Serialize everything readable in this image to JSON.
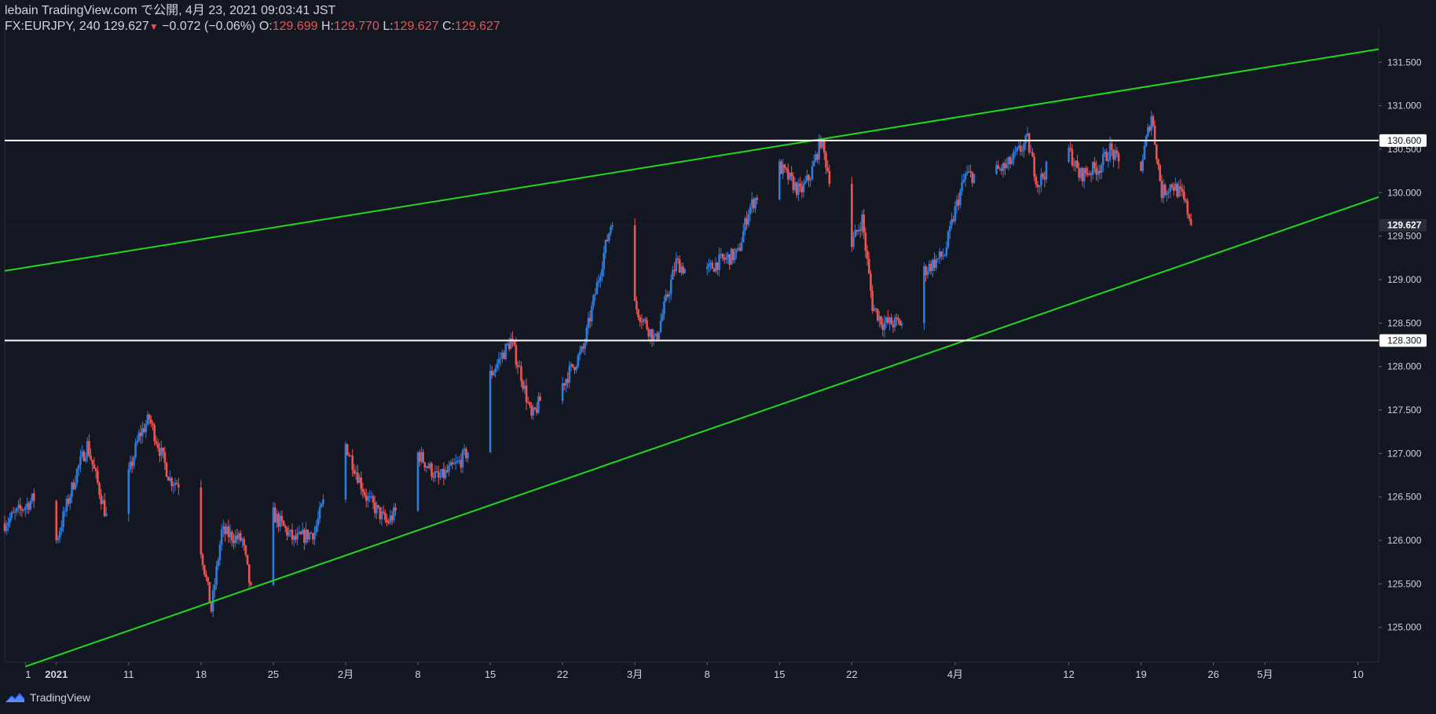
{
  "header": {
    "line1": "lebain TradingView.com で公開, 4月 23, 2021 09:03:41 JST",
    "symbol_text": "FX:EURJPY, 240 129.627",
    "change_arrow": "▼",
    "change_text": "−0.072 (−0.06%)",
    "o_label": "O:",
    "o_value": "129.699",
    "h_label": "H:",
    "h_value": "129.770",
    "l_label": "L:",
    "l_value": "129.627",
    "c_label": "C:",
    "c_value": "129.627"
  },
  "footer": {
    "brand": "TradingView"
  },
  "colors": {
    "background": "#131722",
    "up": "#2f7bd9",
    "down": "#ef5350",
    "trendline": "#22d81f",
    "level": "#ffffff",
    "axis_text": "#d1d4dc"
  },
  "chart_data": {
    "type": "candlestick",
    "symbol": "FX:EURJPY",
    "interval": "240",
    "price_axis": {
      "ticks": [
        "131.500",
        "131.000",
        "130.500",
        "130.000",
        "129.500",
        "129.000",
        "128.500",
        "128.000",
        "127.500",
        "127.000",
        "126.500",
        "126.000",
        "125.500",
        "125.000"
      ],
      "range": [
        124.6,
        131.9
      ]
    },
    "time_axis": {
      "labels": [
        "1",
        "2021",
        "11",
        "18",
        "25",
        "2月",
        "8",
        "15",
        "22",
        "3月",
        "8",
        "15",
        "22",
        "4月",
        "12",
        "19",
        "26",
        "5月",
        "10"
      ],
      "range": [
        "2020-12-30",
        "2021-05-12"
      ]
    },
    "current_price": "129.627",
    "horizontal_levels": [
      {
        "label": "130.600",
        "price": 130.6
      },
      {
        "label": "128.300",
        "price": 128.3
      }
    ],
    "trendlines": [
      {
        "name": "upper channel",
        "p1": [
          "2020-12-30",
          129.1
        ],
        "p2": [
          "2021-05-12",
          131.65
        ]
      },
      {
        "name": "lower channel",
        "p1": [
          "2021-01-01",
          124.55
        ],
        "p2": [
          "2021-05-12",
          129.95
        ]
      }
    ],
    "path_points": [
      [
        "2020-12-30",
        126.2
      ],
      [
        "2021-01-02",
        126.5
      ],
      [
        "2021-01-04",
        126.0
      ],
      [
        "2021-01-06",
        126.8
      ],
      [
        "2021-01-07",
        127.1
      ],
      [
        "2021-01-09",
        126.2
      ],
      [
        "2021-01-10",
        126.3
      ],
      [
        "2021-01-12",
        127.2
      ],
      [
        "2021-01-13",
        127.4
      ],
      [
        "2021-01-15",
        126.7
      ],
      [
        "2021-01-17",
        126.6
      ],
      [
        "2021-01-19",
        125.2
      ],
      [
        "2021-01-20",
        126.1
      ],
      [
        "2021-01-22",
        126.0
      ],
      [
        "2021-01-23",
        125.3
      ],
      [
        "2021-01-25",
        126.3
      ],
      [
        "2021-01-27",
        126.0
      ],
      [
        "2021-01-29",
        126.1
      ],
      [
        "2021-01-30",
        126.5
      ],
      [
        "2021-02-01",
        127.1
      ],
      [
        "2021-02-03",
        126.5
      ],
      [
        "2021-02-05",
        126.2
      ],
      [
        "2021-02-07",
        126.5
      ],
      [
        "2021-02-08",
        127.0
      ],
      [
        "2021-02-10",
        126.7
      ],
      [
        "2021-02-12",
        126.9
      ],
      [
        "2021-02-14",
        127.2
      ],
      [
        "2021-02-15",
        127.9
      ],
      [
        "2021-02-17",
        128.3
      ],
      [
        "2021-02-18",
        127.9
      ],
      [
        "2021-02-19",
        127.4
      ],
      [
        "2021-02-21",
        127.9
      ],
      [
        "2021-02-22",
        127.8
      ],
      [
        "2021-02-24",
        128.2
      ],
      [
        "2021-02-26",
        129.3
      ],
      [
        "2021-02-27",
        129.8
      ],
      [
        "2021-02-28",
        129.0
      ],
      [
        "2021-03-01",
        128.7
      ],
      [
        "2021-03-03",
        128.3
      ],
      [
        "2021-03-05",
        129.2
      ],
      [
        "2021-03-07",
        129.0
      ],
      [
        "2021-03-09",
        129.2
      ],
      [
        "2021-03-11",
        129.3
      ],
      [
        "2021-03-12",
        129.8
      ],
      [
        "2021-03-14",
        130.2
      ],
      [
        "2021-03-15",
        130.3
      ],
      [
        "2021-03-17",
        130.0
      ],
      [
        "2021-03-18",
        130.2
      ],
      [
        "2021-03-19",
        130.6
      ],
      [
        "2021-03-21",
        129.6
      ],
      [
        "2021-03-22",
        129.4
      ],
      [
        "2021-03-23",
        129.7
      ],
      [
        "2021-03-24",
        128.7
      ],
      [
        "2021-03-25",
        128.5
      ],
      [
        "2021-03-27",
        128.5
      ],
      [
        "2021-03-29",
        129.1
      ],
      [
        "2021-03-31",
        129.3
      ],
      [
        "2021-04-01",
        129.8
      ],
      [
        "2021-04-02",
        130.2
      ],
      [
        "2021-04-04",
        130.2
      ],
      [
        "2021-04-06",
        130.3
      ],
      [
        "2021-04-08",
        130.6
      ],
      [
        "2021-04-09",
        130.1
      ],
      [
        "2021-04-10",
        130.3
      ],
      [
        "2021-04-12",
        130.5
      ],
      [
        "2021-04-13",
        130.2
      ],
      [
        "2021-04-15",
        130.3
      ],
      [
        "2021-04-16",
        130.5
      ],
      [
        "2021-04-18",
        130.1
      ],
      [
        "2021-04-19",
        130.3
      ],
      [
        "2021-04-20",
        130.9
      ],
      [
        "2021-04-21",
        130.0
      ],
      [
        "2021-04-22",
        130.1
      ],
      [
        "2021-04-23",
        129.95
      ],
      [
        "2021-04-24",
        129.627
      ]
    ]
  }
}
